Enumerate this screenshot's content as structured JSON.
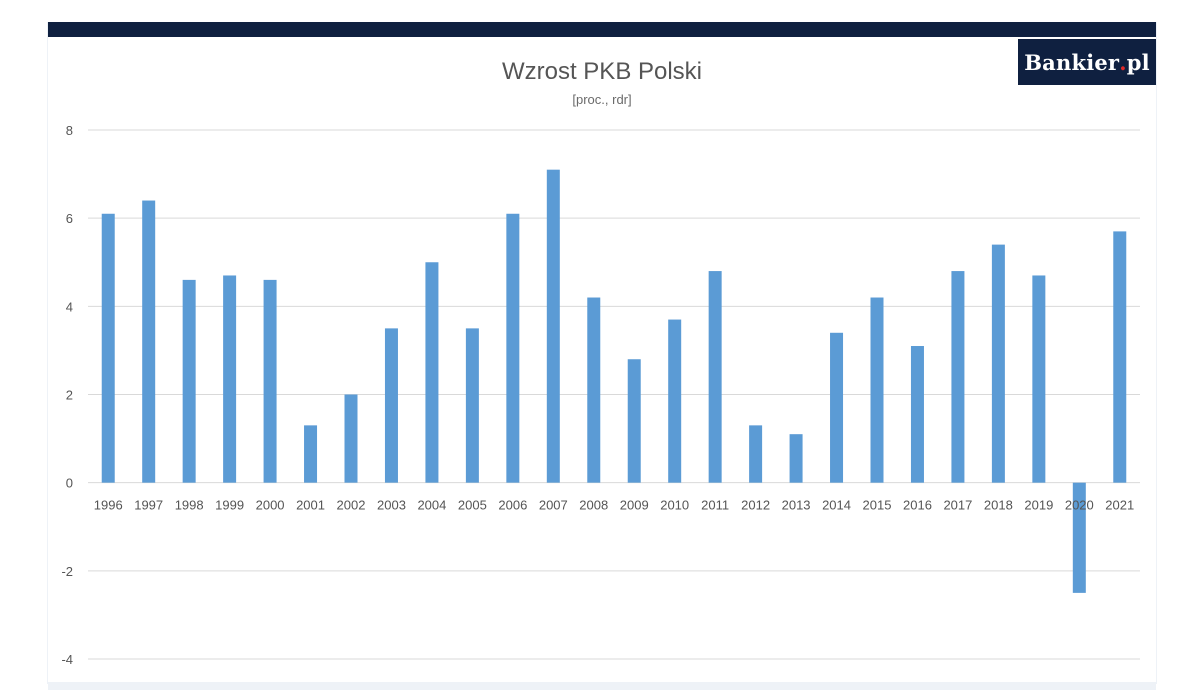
{
  "logo": {
    "brand": "Bankier",
    "dot": ".",
    "suffix": "pl"
  },
  "chart_data": {
    "type": "bar",
    "title": "Wzrost PKB Polski",
    "subtitle": "[proc., rdr]",
    "xlabel": "",
    "ylabel": "",
    "categories": [
      "1996",
      "1997",
      "1998",
      "1999",
      "2000",
      "2001",
      "2002",
      "2003",
      "2004",
      "2005",
      "2006",
      "2007",
      "2008",
      "2009",
      "2010",
      "2011",
      "2012",
      "2013",
      "2014",
      "2015",
      "2016",
      "2017",
      "2018",
      "2019",
      "2020",
      "2021"
    ],
    "values": [
      6.1,
      6.4,
      4.6,
      4.7,
      4.6,
      1.3,
      2.0,
      3.5,
      5.0,
      3.5,
      6.1,
      7.1,
      4.2,
      2.8,
      3.7,
      4.8,
      1.3,
      1.1,
      3.4,
      4.2,
      3.1,
      4.8,
      5.4,
      4.7,
      -2.5,
      5.7
    ],
    "ylim": [
      -4,
      8
    ],
    "yticks": [
      -4,
      -2,
      0,
      2,
      4,
      6,
      8
    ],
    "grid": true,
    "legend": "none",
    "colors": {
      "bar": "#5b9bd5",
      "grid": "#d9d9d9",
      "title": "#555555"
    }
  }
}
